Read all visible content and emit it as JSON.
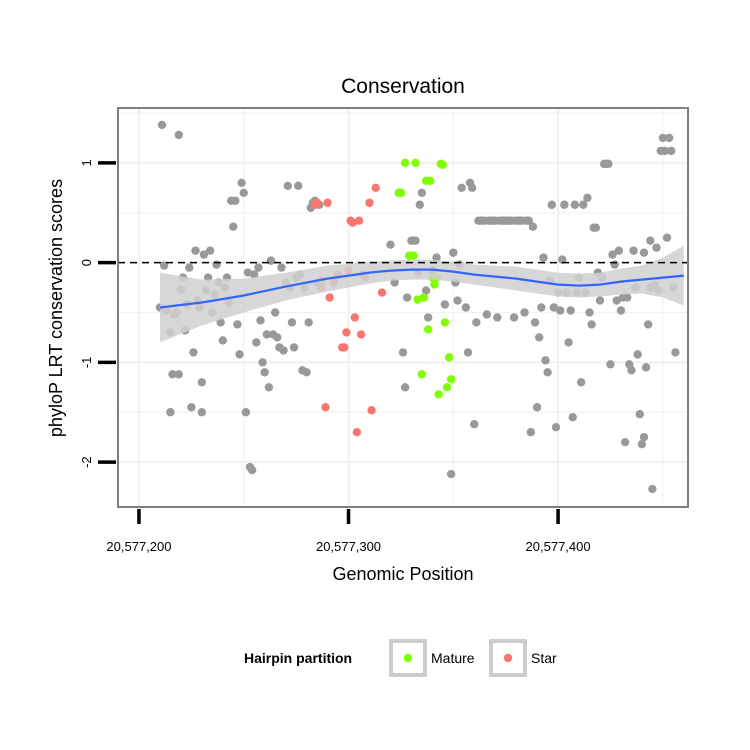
{
  "chart_data": {
    "type": "scatter",
    "title": "Conservation",
    "xlabel": "Genomic Position",
    "ylabel": "phyloP LRT conservation scores",
    "xlim": [
      20577190,
      20577462
    ],
    "ylim": [
      -2.45,
      1.55
    ],
    "x_ticks": [
      20577200,
      20577300,
      20577400
    ],
    "x_tick_labels": [
      "20,577,200",
      "20,577,300",
      "20,577,400"
    ],
    "y_ticks": [
      -2,
      -1,
      0,
      1
    ],
    "y_tick_labels": [
      "-2",
      "-1",
      "0",
      "1"
    ],
    "reference_line": {
      "y": 0,
      "style": "dashed"
    },
    "grid": true,
    "legend": {
      "title": "Hairpin partition",
      "position": "bottom",
      "entries": [
        {
          "label": "Mature",
          "color": "#7FFF00"
        },
        {
          "label": "Star",
          "color": "#F8766D"
        }
      ]
    },
    "colors": {
      "background": "#FFFFFF",
      "grid": "#F2F2F2",
      "background_points": "#999999",
      "smooth_line": "#3366FF",
      "confidence_band": "#D0D0D0"
    },
    "series": [
      {
        "color": "#999999",
        "points": [
          [
            20577211,
            1.38
          ],
          [
            20577219,
            1.28
          ],
          [
            20577215,
            -1.5
          ],
          [
            20577210,
            -0.45
          ],
          [
            20577213,
            -0.48
          ],
          [
            20577212,
            -0.03
          ],
          [
            20577215,
            -0.7
          ],
          [
            20577216,
            -1.12
          ],
          [
            20577217,
            -0.52
          ],
          [
            20577218,
            -0.5
          ],
          [
            20577219,
            -1.12
          ],
          [
            20577220,
            -0.27
          ],
          [
            20577221,
            -0.15
          ],
          [
            20577222,
            -0.68
          ],
          [
            20577223,
            -0.42
          ],
          [
            20577224,
            -0.05
          ],
          [
            20577225,
            -1.45
          ],
          [
            20577226,
            -0.9
          ],
          [
            20577227,
            0.12
          ],
          [
            20577228,
            -0.38
          ],
          [
            20577229,
            -0.45
          ],
          [
            20577230,
            -1.5
          ],
          [
            20577230,
            -1.2
          ],
          [
            20577231,
            0.08
          ],
          [
            20577232,
            -0.28
          ],
          [
            20577233,
            -0.15
          ],
          [
            20577234,
            0.12
          ],
          [
            20577235,
            -0.5
          ],
          [
            20577236,
            -0.32
          ],
          [
            20577237,
            -0.02
          ],
          [
            20577238,
            -0.2
          ],
          [
            20577239,
            -0.6
          ],
          [
            20577240,
            -0.78
          ],
          [
            20577241,
            -0.25
          ],
          [
            20577242,
            -0.15
          ],
          [
            20577243,
            -0.4
          ],
          [
            20577244,
            0.62
          ],
          [
            20577245,
            0.36
          ],
          [
            20577246,
            0.62
          ],
          [
            20577247,
            -0.62
          ],
          [
            20577248,
            -0.92
          ],
          [
            20577249,
            0.8
          ],
          [
            20577250,
            0.7
          ],
          [
            20577251,
            -1.5
          ],
          [
            20577252,
            -0.1
          ],
          [
            20577253,
            -2.05
          ],
          [
            20577254,
            -2.08
          ],
          [
            20577255,
            -0.12
          ],
          [
            20577256,
            -0.8
          ],
          [
            20577257,
            -0.05
          ],
          [
            20577258,
            -0.58
          ],
          [
            20577259,
            -1.0
          ],
          [
            20577260,
            -1.1
          ],
          [
            20577261,
            -0.72
          ],
          [
            20577262,
            -1.25
          ],
          [
            20577263,
            0.02
          ],
          [
            20577264,
            -0.72
          ],
          [
            20577265,
            -0.5
          ],
          [
            20577266,
            -0.75
          ],
          [
            20577267,
            -0.85
          ],
          [
            20577268,
            -0.05
          ],
          [
            20577269,
            -0.88
          ],
          [
            20577270,
            -0.2
          ],
          [
            20577271,
            0.77
          ],
          [
            20577272,
            -0.25
          ],
          [
            20577273,
            -0.6
          ],
          [
            20577274,
            -0.85
          ],
          [
            20577275,
            -0.15
          ],
          [
            20577276,
            0.77
          ],
          [
            20577277,
            -0.12
          ],
          [
            20577278,
            -1.08
          ],
          [
            20577279,
            -0.25
          ],
          [
            20577280,
            -1.1
          ],
          [
            20577281,
            -0.6
          ],
          [
            20577282,
            0.55
          ],
          [
            20577283,
            0.6
          ],
          [
            20577284,
            0.62
          ],
          [
            20577285,
            -0.2
          ],
          [
            20577286,
            0.58
          ],
          [
            20577287,
            -0.18
          ],
          [
            20577320,
            0.18
          ],
          [
            20577322,
            -0.2
          ],
          [
            20577324,
            0.7
          ],
          [
            20577325,
            0.7
          ],
          [
            20577326,
            -0.9
          ],
          [
            20577327,
            -1.25
          ],
          [
            20577328,
            -0.35
          ],
          [
            20577330,
            0.22
          ],
          [
            20577331,
            0.22
          ],
          [
            20577332,
            0.22
          ],
          [
            20577333,
            -0.1
          ],
          [
            20577334,
            0.58
          ],
          [
            20577335,
            0.7
          ],
          [
            20577337,
            -0.28
          ],
          [
            20577338,
            -0.55
          ],
          [
            20577340,
            -0.08
          ],
          [
            20577342,
            0.05
          ],
          [
            20577346,
            -0.42
          ],
          [
            20577349,
            -2.12
          ],
          [
            20577350,
            0.1
          ],
          [
            20577351,
            -0.2
          ],
          [
            20577352,
            -0.38
          ],
          [
            20577353,
            -0.02
          ],
          [
            20577354,
            0.75
          ],
          [
            20577356,
            -0.45
          ],
          [
            20577357,
            -0.9
          ],
          [
            20577358,
            0.8
          ],
          [
            20577359,
            0.75
          ],
          [
            20577360,
            -1.62
          ],
          [
            20577361,
            -0.6
          ],
          [
            20577362,
            0.42
          ],
          [
            20577363,
            0.42
          ],
          [
            20577364,
            0.42
          ],
          [
            20577365,
            0.42
          ],
          [
            20577366,
            -0.52
          ],
          [
            20577367,
            0.42
          ],
          [
            20577368,
            0.42
          ],
          [
            20577369,
            0.42
          ],
          [
            20577370,
            0.42
          ],
          [
            20577371,
            -0.55
          ],
          [
            20577372,
            0.42
          ],
          [
            20577373,
            0.42
          ],
          [
            20577374,
            0.42
          ],
          [
            20577375,
            0.42
          ],
          [
            20577376,
            0.42
          ],
          [
            20577377,
            0.42
          ],
          [
            20577378,
            0.42
          ],
          [
            20577379,
            -0.55
          ],
          [
            20577380,
            0.42
          ],
          [
            20577381,
            0.42
          ],
          [
            20577382,
            0.42
          ],
          [
            20577383,
            0.42
          ],
          [
            20577384,
            -0.5
          ],
          [
            20577385,
            0.42
          ],
          [
            20577386,
            0.42
          ],
          [
            20577387,
            -1.7
          ],
          [
            20577388,
            0.36
          ],
          [
            20577389,
            -0.6
          ],
          [
            20577390,
            -1.45
          ],
          [
            20577391,
            -0.75
          ],
          [
            20577392,
            -0.45
          ],
          [
            20577393,
            0.05
          ],
          [
            20577394,
            -0.98
          ],
          [
            20577395,
            -1.1
          ],
          [
            20577396,
            -0.18
          ],
          [
            20577397,
            0.58
          ],
          [
            20577398,
            -0.45
          ],
          [
            20577399,
            -1.65
          ],
          [
            20577400,
            -0.3
          ],
          [
            20577401,
            -0.48
          ],
          [
            20577402,
            0.03
          ],
          [
            20577403,
            0.58
          ],
          [
            20577404,
            -0.3
          ],
          [
            20577405,
            -0.8
          ],
          [
            20577406,
            -0.48
          ],
          [
            20577407,
            -1.55
          ],
          [
            20577408,
            0.58
          ],
          [
            20577409,
            -0.3
          ],
          [
            20577410,
            -0.15
          ],
          [
            20577411,
            -1.2
          ],
          [
            20577412,
            0.58
          ],
          [
            20577413,
            -0.3
          ],
          [
            20577414,
            0.65
          ],
          [
            20577415,
            -0.5
          ],
          [
            20577416,
            -0.62
          ],
          [
            20577417,
            0.35
          ],
          [
            20577418,
            0.35
          ],
          [
            20577419,
            -0.1
          ],
          [
            20577420,
            -0.38
          ],
          [
            20577421,
            -0.15
          ],
          [
            20577422,
            0.99
          ],
          [
            20577423,
            0.99
          ],
          [
            20577424,
            0.99
          ],
          [
            20577425,
            -1.02
          ],
          [
            20577426,
            0.08
          ],
          [
            20577427,
            -0.02
          ],
          [
            20577428,
            -0.38
          ],
          [
            20577429,
            0.12
          ],
          [
            20577430,
            -0.48
          ],
          [
            20577431,
            -0.35
          ],
          [
            20577432,
            -1.8
          ],
          [
            20577433,
            -0.35
          ],
          [
            20577434,
            -1.02
          ],
          [
            20577435,
            -1.08
          ],
          [
            20577436,
            0.12
          ],
          [
            20577437,
            -0.25
          ],
          [
            20577438,
            -0.92
          ],
          [
            20577439,
            -1.52
          ],
          [
            20577440,
            -1.82
          ],
          [
            20577441,
            0.1
          ],
          [
            20577441,
            -1.75
          ],
          [
            20577442,
            -1.05
          ],
          [
            20577443,
            -0.62
          ],
          [
            20577444,
            0.22
          ],
          [
            20577444,
            -0.25
          ],
          [
            20577445,
            -2.27
          ],
          [
            20577446,
            -0.22
          ],
          [
            20577447,
            0.15
          ],
          [
            20577448,
            -0.28
          ],
          [
            20577449,
            1.12
          ],
          [
            20577450,
            1.25
          ],
          [
            20577451,
            1.12
          ],
          [
            20577452,
            0.25
          ],
          [
            20577453,
            1.25
          ],
          [
            20577454,
            1.12
          ],
          [
            20577455,
            -0.25
          ],
          [
            20577456,
            -0.9
          ]
        ]
      },
      {
        "name": "Mature",
        "color": "#7FFF00",
        "points": [
          [
            20577324,
            0.7
          ],
          [
            20577325,
            0.7
          ],
          [
            20577327,
            1.0
          ],
          [
            20577329,
            0.07
          ],
          [
            20577331,
            0.07
          ],
          [
            20577332,
            1.0
          ],
          [
            20577333,
            -0.37
          ],
          [
            20577335,
            -1.12
          ],
          [
            20577336,
            -0.35
          ],
          [
            20577337,
            0.82
          ],
          [
            20577338,
            -0.67
          ],
          [
            20577339,
            0.82
          ],
          [
            20577340,
            -0.15
          ],
          [
            20577341,
            -0.22
          ],
          [
            20577342,
            -0.15
          ],
          [
            20577343,
            -1.32
          ],
          [
            20577344,
            0.99
          ],
          [
            20577345,
            0.98
          ],
          [
            20577346,
            -0.6
          ],
          [
            20577347,
            -1.25
          ],
          [
            20577348,
            -0.95
          ],
          [
            20577349,
            -1.17
          ]
        ]
      },
      {
        "name": "Star",
        "color": "#F8766D",
        "points": [
          [
            20577284,
            0.58
          ],
          [
            20577285,
            0.6
          ],
          [
            20577287,
            -0.25
          ],
          [
            20577289,
            -1.45
          ],
          [
            20577290,
            0.6
          ],
          [
            20577291,
            -0.35
          ],
          [
            20577293,
            -0.2
          ],
          [
            20577295,
            -0.12
          ],
          [
            20577297,
            -0.85
          ],
          [
            20577298,
            -0.85
          ],
          [
            20577299,
            -0.7
          ],
          [
            20577300,
            -0.08
          ],
          [
            20577301,
            0.42
          ],
          [
            20577302,
            0.4
          ],
          [
            20577303,
            -0.55
          ],
          [
            20577304,
            -1.7
          ],
          [
            20577305,
            0.42
          ],
          [
            20577306,
            -0.72
          ],
          [
            20577307,
            -0.12
          ],
          [
            20577308,
            -0.15
          ],
          [
            20577310,
            0.6
          ],
          [
            20577311,
            -1.48
          ],
          [
            20577313,
            0.75
          ],
          [
            20577316,
            -0.3
          ]
        ]
      }
    ],
    "smooth": {
      "x": [
        20577210,
        20577230,
        20577250,
        20577270,
        20577290,
        20577310,
        20577320,
        20577330,
        20577340,
        20577350,
        20577360,
        20577370,
        20577380,
        20577390,
        20577400,
        20577410,
        20577420,
        20577430,
        20577440,
        20577450,
        20577460
      ],
      "y": [
        -0.45,
        -0.4,
        -0.33,
        -0.24,
        -0.16,
        -0.1,
        -0.08,
        -0.07,
        -0.07,
        -0.09,
        -0.12,
        -0.14,
        -0.16,
        -0.19,
        -0.22,
        -0.23,
        -0.22,
        -0.19,
        -0.17,
        -0.15,
        -0.13
      ],
      "lower": [
        -0.8,
        -0.63,
        -0.5,
        -0.38,
        -0.29,
        -0.21,
        -0.18,
        -0.17,
        -0.17,
        -0.19,
        -0.22,
        -0.25,
        -0.28,
        -0.31,
        -0.34,
        -0.35,
        -0.34,
        -0.32,
        -0.31,
        -0.35,
        -0.43
      ],
      "upper": [
        -0.1,
        -0.17,
        -0.16,
        -0.1,
        -0.03,
        0.01,
        0.02,
        0.03,
        0.03,
        0.01,
        -0.02,
        -0.03,
        -0.04,
        -0.07,
        -0.1,
        -0.11,
        -0.1,
        -0.06,
        -0.03,
        0.05,
        0.17
      ]
    }
  }
}
